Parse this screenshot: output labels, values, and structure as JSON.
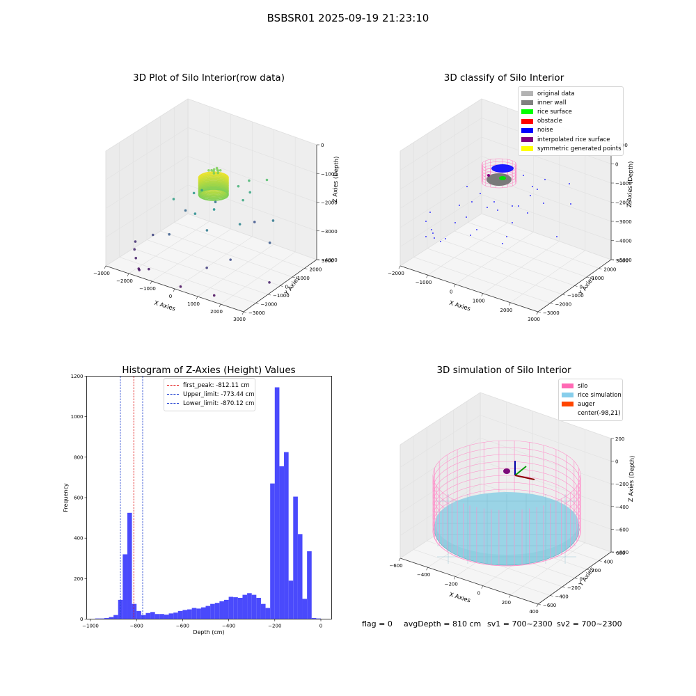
{
  "suptitle": "BSBSR01 2025-09-19 21:23:10",
  "footer": {
    "flag": "flag = 0",
    "avg_depth": "avgDepth = 810 cm",
    "sv1": "sv1 = 700~2300",
    "sv2": "sv2 = 700~2300"
  },
  "chart_data": [
    {
      "type": "scatter",
      "title": "3D Plot of Silo Interior(row data)",
      "xlabel": "X Axies",
      "ylabel": "Y Axies",
      "zlabel": "Z Axies (Depth)",
      "xlim": [
        -3000,
        3000
      ],
      "ylim": [
        -3000,
        3000
      ],
      "zlim": [
        -4000,
        0
      ],
      "x_ticks": [
        "−3000",
        "−2000",
        "−1000",
        "0",
        "1000",
        "2000",
        "3000"
      ],
      "y_ticks": [
        "−3000",
        "−2000",
        "−1000",
        "0",
        "1000",
        "2000",
        "3000"
      ],
      "z_ticks": [
        "0",
        "−1000",
        "−2000",
        "−3000",
        "−4000"
      ],
      "colormap": "viridis (by depth)",
      "points": [
        [
          -60,
          150,
          -810
        ],
        [
          40,
          230,
          -820
        ],
        [
          130,
          130,
          -800
        ],
        [
          30,
          -40,
          -790
        ],
        [
          -120,
          60,
          -830
        ],
        [
          210,
          -10,
          -815
        ],
        [
          -30,
          310,
          -805
        ],
        [
          90,
          -120,
          -825
        ],
        [
          -180,
          -60,
          -812
        ],
        [
          160,
          260,
          -818
        ],
        [
          800,
          1400,
          -1350
        ],
        [
          1500,
          1600,
          -1200
        ],
        [
          600,
          900,
          -1450
        ],
        [
          -700,
          300,
          -1750
        ],
        [
          1100,
          400,
          -1650
        ],
        [
          -1000,
          200,
          -1900
        ],
        [
          200,
          -300,
          -2000
        ],
        [
          900,
          1300,
          -1700
        ],
        [
          -300,
          -900,
          -2100
        ],
        [
          -1200,
          -1000,
          -1800
        ],
        [
          1900,
          1400,
          -2450
        ],
        [
          1300,
          -200,
          -2250
        ],
        [
          -800,
          1500,
          -2550
        ],
        [
          400,
          -1200,
          -2400
        ],
        [
          -1500,
          400,
          -2700
        ],
        [
          2200,
          600,
          -2900
        ],
        [
          -1100,
          -1500,
          -2850
        ],
        [
          700,
          2000,
          -3000
        ],
        [
          -2000,
          -1200,
          -3200
        ],
        [
          1500,
          -1300,
          -3100
        ],
        [
          -2400,
          -1900,
          -3600
        ],
        [
          -2100,
          -2300,
          -3700
        ],
        [
          -1800,
          -2600,
          -3900
        ],
        [
          -1600,
          -2900,
          -3800
        ],
        [
          -1300,
          -2700,
          -3750
        ],
        [
          -2600,
          -1500,
          -3500
        ],
        [
          200,
          -2900,
          -3900
        ],
        [
          2900,
          -700,
          -3700
        ],
        [
          900,
          -2100,
          -3300
        ],
        [
          1500,
          -2600,
          -3950
        ]
      ]
    },
    {
      "type": "scatter",
      "title": "3D classify of Silo Interior",
      "xlabel": "X Axies",
      "ylabel": "Y Axies",
      "zlabel": "Z Axies (Depth)",
      "xlim": [
        -2000,
        3000
      ],
      "ylim": [
        -3000,
        3000
      ],
      "zlim": [
        -5000,
        1000
      ],
      "x_ticks": [
        "−2000",
        "−1000",
        "0",
        "1000",
        "2000",
        "3000"
      ],
      "y_ticks": [
        "−3000",
        "−2000",
        "−1000",
        "0",
        "1000",
        "2000",
        "3000"
      ],
      "z_ticks": [
        "1000",
        "0",
        "−1000",
        "−2000",
        "−3000",
        "−4000",
        "−5000"
      ],
      "legend": [
        {
          "label": "original data",
          "color": "#b3b3b3"
        },
        {
          "label": "inner wall",
          "color": "#808080"
        },
        {
          "label": "rice surface",
          "color": "#00ff00"
        },
        {
          "label": "obstacle",
          "color": "#ff0000"
        },
        {
          "label": "noise",
          "color": "#0000ff"
        },
        {
          "label": "interpolated rice surface",
          "color": "#800080"
        },
        {
          "label": "symmetric generated points",
          "color": "#ffff00"
        }
      ],
      "legend_loc": "upper right"
    },
    {
      "type": "bar",
      "title": "Histogram of Z-Axies (Height) Values",
      "xlabel": "Depth (cm)",
      "ylabel": "Frequency",
      "xlim": [
        -1000,
        0
      ],
      "ylim": [
        0,
        1200
      ],
      "x_ticks": [
        "−1000",
        "−800",
        "−600",
        "−400",
        "−200",
        "0"
      ],
      "y_ticks": [
        "0",
        "200",
        "400",
        "600",
        "800",
        "1000",
        "1200"
      ],
      "bin_width": 20,
      "bin_starts": [
        -980,
        -960,
        -940,
        -920,
        -900,
        -880,
        -860,
        -840,
        -820,
        -800,
        -780,
        -760,
        -740,
        -720,
        -700,
        -680,
        -660,
        -640,
        -620,
        -600,
        -580,
        -560,
        -540,
        -520,
        -500,
        -480,
        -460,
        -440,
        -420,
        -400,
        -380,
        -360,
        -340,
        -320,
        -300,
        -280,
        -260,
        -240,
        -220,
        -200,
        -180,
        -160,
        -140,
        -120,
        -100,
        -80,
        -60,
        -40,
        -20
      ],
      "values": [
        3,
        3,
        5,
        10,
        20,
        95,
        320,
        525,
        75,
        40,
        20,
        30,
        35,
        25,
        25,
        22,
        28,
        32,
        40,
        45,
        48,
        55,
        52,
        58,
        65,
        75,
        80,
        88,
        95,
        110,
        108,
        105,
        120,
        128,
        120,
        105,
        75,
        55,
        670,
        1145,
        755,
        825,
        190,
        605,
        420,
        100,
        335,
        5,
        3
      ],
      "bar_color": "#4a4afc",
      "vlines": [
        {
          "label": "first_peak: -812.11 cm",
          "x": -812.11,
          "color": "#e01010"
        },
        {
          "label": "Upper_limit: -773.44 cm",
          "x": -773.44,
          "color": "#1f3fd0"
        },
        {
          "label": "Lower_limit: -870.12 cm",
          "x": -870.12,
          "color": "#1f3fd0"
        }
      ],
      "legend_loc": "upper center"
    },
    {
      "type": "scatter",
      "title": "3D simulation of Silo Interior",
      "xlabel": "X Axies",
      "ylabel": "Y Axies",
      "zlabel": "Z Axies (Depth)",
      "xlim": [
        -700,
        500
      ],
      "ylim": [
        -600,
        600
      ],
      "zlim": [
        -900,
        300
      ],
      "x_ticks": [
        "−600",
        "−400",
        "−200",
        "0",
        "200",
        "400"
      ],
      "y_ticks": [
        "−600",
        "−400",
        "−200",
        "0",
        "200",
        "400",
        "600"
      ],
      "z_ticks": [
        "200",
        "0",
        "−200",
        "−400",
        "−600",
        "−800"
      ],
      "legend": [
        {
          "label": "silo",
          "color": "#ff69b4"
        },
        {
          "label": "rice simulation",
          "color": "#87ceeb"
        },
        {
          "label": "auger",
          "color": "#ff4500"
        },
        {
          "label": "center(-98,21)",
          "color": ""
        }
      ],
      "legend_loc": "upper right"
    }
  ]
}
